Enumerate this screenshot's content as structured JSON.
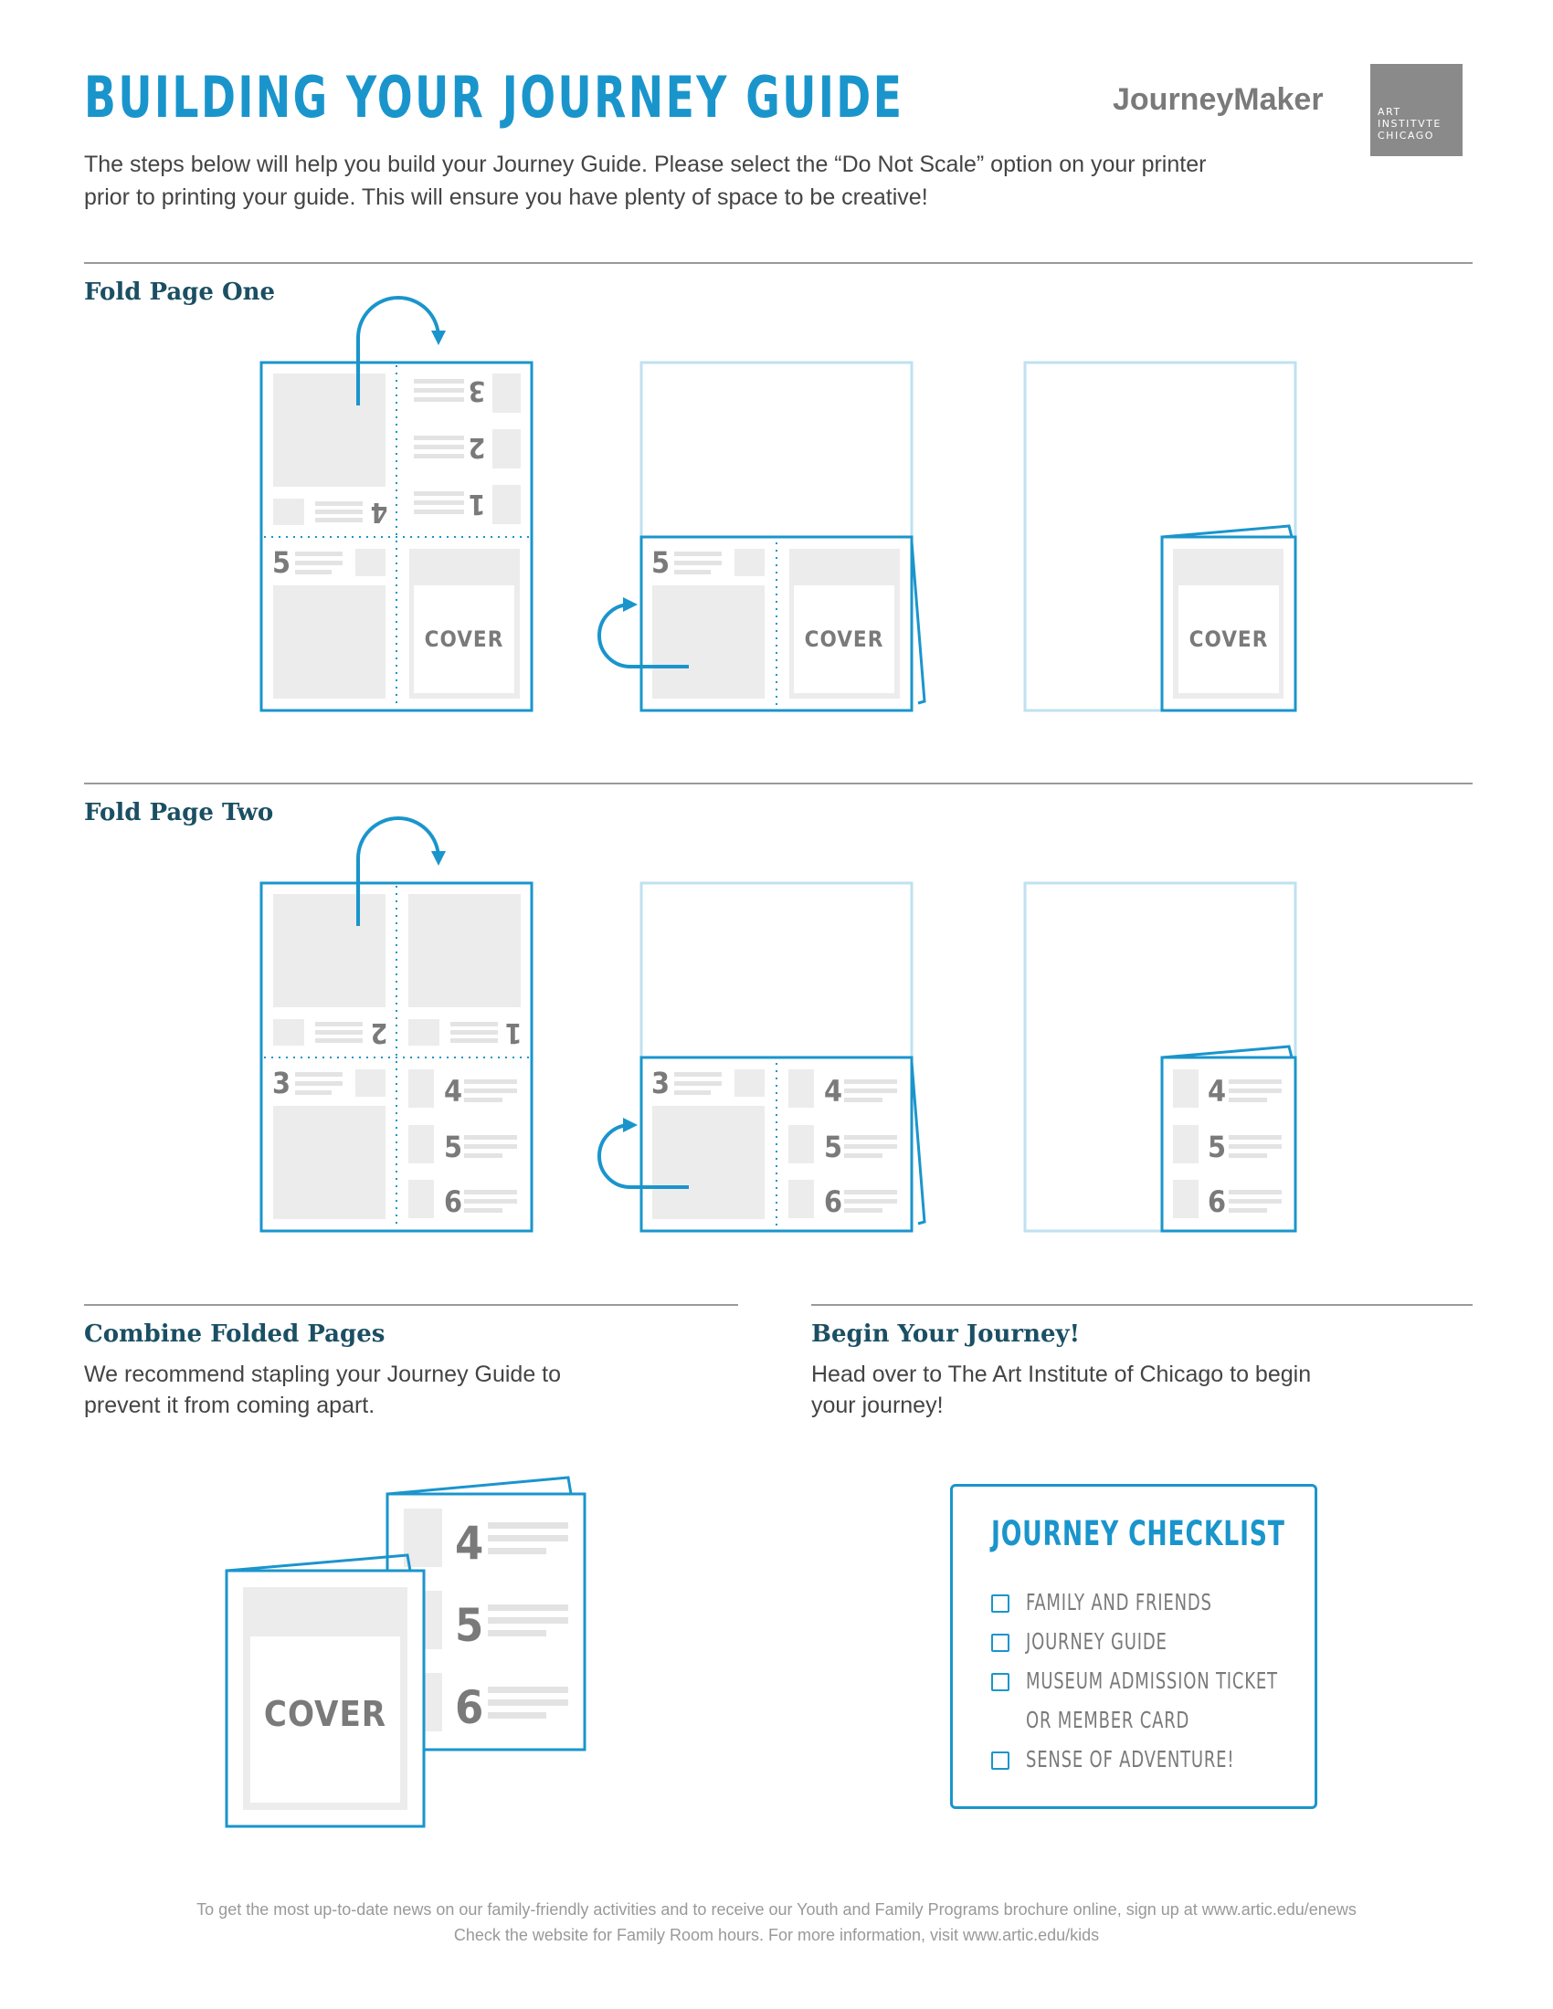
{
  "header": {
    "title": "BUILDING YOUR JOURNEY GUIDE",
    "brand": "JourneyMaker",
    "logo_lines": [
      "ART",
      "INSTITVTE",
      "CHICAGO"
    ],
    "intro": "The steps below will help you build your Journey Guide. Please select the “Do Not Scale” option on your printer prior to printing your guide. This will ensure you have plenty of space to be creative!"
  },
  "sections": {
    "fold_one": {
      "heading": "Fold Page One"
    },
    "fold_two": {
      "heading": "Fold Page Two"
    },
    "combine": {
      "heading": "Combine Folded Pages",
      "text": "We recommend stapling your Journey Guide to prevent it from coming apart."
    },
    "begin": {
      "heading": "Begin Your Journey!",
      "text": "Head over to The Art Institute of Chicago to begin your journey!"
    }
  },
  "diagram_labels": {
    "cover": "COVER",
    "n1": "1",
    "n2": "2",
    "n3": "3",
    "n4": "4",
    "n5": "5",
    "n6": "6"
  },
  "checklist": {
    "title": "JOURNEY CHECKLIST",
    "items": [
      "FAMILY AND FRIENDS",
      "JOURNEY GUIDE",
      "MUSEUM ADMISSION TICKET",
      "OR MEMBER CARD",
      "SENSE OF ADVENTURE!"
    ]
  },
  "footer": {
    "line1": "To get the most up-to-date news on our family-friendly activities and to receive our Youth and Family Programs brochure online, sign up at www.artic.edu/enews",
    "line2": "Check the website for Family Room hours. For more information, visit www.artic.edu/kids"
  },
  "colors": {
    "accent": "#1a95cc",
    "heading": "#1b4f63",
    "placeholder": "#ececec",
    "label": "#7a7a7a"
  }
}
